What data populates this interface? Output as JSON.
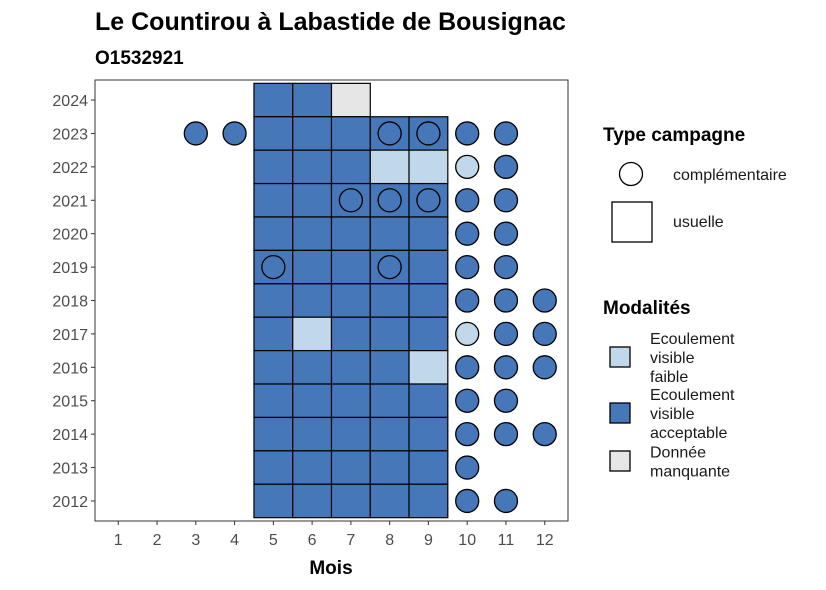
{
  "chart_data": {
    "type": "heatmap",
    "title": "Le Countirou à Labastide de Bousignac",
    "subtitle": "O1532921",
    "xlabel": "Mois",
    "ylabel": "",
    "x_categories": [
      "1",
      "2",
      "3",
      "4",
      "5",
      "6",
      "7",
      "8",
      "9",
      "10",
      "11",
      "12"
    ],
    "y_categories": [
      "2012",
      "2013",
      "2014",
      "2015",
      "2016",
      "2017",
      "2018",
      "2019",
      "2020",
      "2021",
      "2022",
      "2023",
      "2024"
    ],
    "grid": false,
    "legend_position": "right",
    "colors": {
      "Ecoulement visible faible": "#c0d8ea",
      "Ecoulement visible acceptable": "#4677b8",
      "Donnée manquante": "#e6e6e6"
    },
    "legends": {
      "type_campagne": {
        "title": "Type campagne",
        "items": [
          {
            "label": "complémentaire",
            "shape": "circle"
          },
          {
            "label": "usuelle",
            "shape": "square"
          }
        ]
      },
      "modalites": {
        "title": "Modalités",
        "items": [
          {
            "label": [
              "Ecoulement",
              "visible",
              "faible"
            ],
            "key": "Ecoulement visible faible"
          },
          {
            "label": [
              "Ecoulement",
              "visible",
              "acceptable"
            ],
            "key": "Ecoulement visible acceptable"
          },
          {
            "label": [
              "Donnée",
              "manquante"
            ],
            "key": "Donnée manquante"
          }
        ]
      }
    },
    "points": [
      {
        "month": 5,
        "year": 2024,
        "campagne": "usuelle",
        "modalite": "Ecoulement visible acceptable"
      },
      {
        "month": 6,
        "year": 2024,
        "campagne": "usuelle",
        "modalite": "Ecoulement visible acceptable"
      },
      {
        "month": 7,
        "year": 2024,
        "campagne": "usuelle",
        "modalite": "Donnée manquante"
      },
      {
        "month": 3,
        "year": 2023,
        "campagne": "complémentaire",
        "modalite": "Ecoulement visible acceptable"
      },
      {
        "month": 4,
        "year": 2023,
        "campagne": "complémentaire",
        "modalite": "Ecoulement visible acceptable"
      },
      {
        "month": 5,
        "year": 2023,
        "campagne": "usuelle",
        "modalite": "Ecoulement visible acceptable"
      },
      {
        "month": 6,
        "year": 2023,
        "campagne": "usuelle",
        "modalite": "Ecoulement visible acceptable"
      },
      {
        "month": 7,
        "year": 2023,
        "campagne": "usuelle",
        "modalite": "Ecoulement visible acceptable"
      },
      {
        "month": 8,
        "year": 2023,
        "campagne": "usuelle",
        "modalite": "Ecoulement visible acceptable"
      },
      {
        "month": 8,
        "year": 2023,
        "campagne": "complémentaire",
        "modalite": "Ecoulement visible acceptable"
      },
      {
        "month": 9,
        "year": 2023,
        "campagne": "usuelle",
        "modalite": "Ecoulement visible acceptable"
      },
      {
        "month": 9,
        "year": 2023,
        "campagne": "complémentaire",
        "modalite": "Ecoulement visible acceptable"
      },
      {
        "month": 10,
        "year": 2023,
        "campagne": "complémentaire",
        "modalite": "Ecoulement visible acceptable"
      },
      {
        "month": 11,
        "year": 2023,
        "campagne": "complémentaire",
        "modalite": "Ecoulement visible acceptable"
      },
      {
        "month": 5,
        "year": 2022,
        "campagne": "usuelle",
        "modalite": "Ecoulement visible acceptable"
      },
      {
        "month": 6,
        "year": 2022,
        "campagne": "usuelle",
        "modalite": "Ecoulement visible acceptable"
      },
      {
        "month": 7,
        "year": 2022,
        "campagne": "usuelle",
        "modalite": "Ecoulement visible acceptable"
      },
      {
        "month": 8,
        "year": 2022,
        "campagne": "usuelle",
        "modalite": "Ecoulement visible faible"
      },
      {
        "month": 9,
        "year": 2022,
        "campagne": "usuelle",
        "modalite": "Ecoulement visible faible"
      },
      {
        "month": 10,
        "year": 2022,
        "campagne": "complémentaire",
        "modalite": "Ecoulement visible faible"
      },
      {
        "month": 11,
        "year": 2022,
        "campagne": "complémentaire",
        "modalite": "Ecoulement visible acceptable"
      },
      {
        "month": 5,
        "year": 2021,
        "campagne": "usuelle",
        "modalite": "Ecoulement visible acceptable"
      },
      {
        "month": 6,
        "year": 2021,
        "campagne": "usuelle",
        "modalite": "Ecoulement visible acceptable"
      },
      {
        "month": 7,
        "year": 2021,
        "campagne": "usuelle",
        "modalite": "Ecoulement visible acceptable"
      },
      {
        "month": 7,
        "year": 2021,
        "campagne": "complémentaire",
        "modalite": "Ecoulement visible acceptable"
      },
      {
        "month": 8,
        "year": 2021,
        "campagne": "usuelle",
        "modalite": "Ecoulement visible acceptable"
      },
      {
        "month": 8,
        "year": 2021,
        "campagne": "complémentaire",
        "modalite": "Ecoulement visible acceptable"
      },
      {
        "month": 9,
        "year": 2021,
        "campagne": "usuelle",
        "modalite": "Ecoulement visible acceptable"
      },
      {
        "month": 9,
        "year": 2021,
        "campagne": "complémentaire",
        "modalite": "Ecoulement visible acceptable"
      },
      {
        "month": 10,
        "year": 2021,
        "campagne": "complémentaire",
        "modalite": "Ecoulement visible acceptable"
      },
      {
        "month": 11,
        "year": 2021,
        "campagne": "complémentaire",
        "modalite": "Ecoulement visible acceptable"
      },
      {
        "month": 5,
        "year": 2020,
        "campagne": "usuelle",
        "modalite": "Ecoulement visible acceptable"
      },
      {
        "month": 6,
        "year": 2020,
        "campagne": "usuelle",
        "modalite": "Ecoulement visible acceptable"
      },
      {
        "month": 7,
        "year": 2020,
        "campagne": "usuelle",
        "modalite": "Ecoulement visible acceptable"
      },
      {
        "month": 8,
        "year": 2020,
        "campagne": "usuelle",
        "modalite": "Ecoulement visible acceptable"
      },
      {
        "month": 9,
        "year": 2020,
        "campagne": "usuelle",
        "modalite": "Ecoulement visible acceptable"
      },
      {
        "month": 10,
        "year": 2020,
        "campagne": "complémentaire",
        "modalite": "Ecoulement visible acceptable"
      },
      {
        "month": 11,
        "year": 2020,
        "campagne": "complémentaire",
        "modalite": "Ecoulement visible acceptable"
      },
      {
        "month": 5,
        "year": 2019,
        "campagne": "usuelle",
        "modalite": "Ecoulement visible acceptable"
      },
      {
        "month": 5,
        "year": 2019,
        "campagne": "complémentaire",
        "modalite": "Ecoulement visible acceptable"
      },
      {
        "month": 6,
        "year": 2019,
        "campagne": "usuelle",
        "modalite": "Ecoulement visible acceptable"
      },
      {
        "month": 7,
        "year": 2019,
        "campagne": "usuelle",
        "modalite": "Ecoulement visible acceptable"
      },
      {
        "month": 8,
        "year": 2019,
        "campagne": "usuelle",
        "modalite": "Ecoulement visible acceptable"
      },
      {
        "month": 8,
        "year": 2019,
        "campagne": "complémentaire",
        "modalite": "Ecoulement visible acceptable"
      },
      {
        "month": 9,
        "year": 2019,
        "campagne": "usuelle",
        "modalite": "Ecoulement visible acceptable"
      },
      {
        "month": 10,
        "year": 2019,
        "campagne": "complémentaire",
        "modalite": "Ecoulement visible acceptable"
      },
      {
        "month": 11,
        "year": 2019,
        "campagne": "complémentaire",
        "modalite": "Ecoulement visible acceptable"
      },
      {
        "month": 5,
        "year": 2018,
        "campagne": "usuelle",
        "modalite": "Ecoulement visible acceptable"
      },
      {
        "month": 6,
        "year": 2018,
        "campagne": "usuelle",
        "modalite": "Ecoulement visible acceptable"
      },
      {
        "month": 7,
        "year": 2018,
        "campagne": "usuelle",
        "modalite": "Ecoulement visible acceptable"
      },
      {
        "month": 8,
        "year": 2018,
        "campagne": "usuelle",
        "modalite": "Ecoulement visible acceptable"
      },
      {
        "month": 9,
        "year": 2018,
        "campagne": "usuelle",
        "modalite": "Ecoulement visible acceptable"
      },
      {
        "month": 10,
        "year": 2018,
        "campagne": "complémentaire",
        "modalite": "Ecoulement visible acceptable"
      },
      {
        "month": 11,
        "year": 2018,
        "campagne": "complémentaire",
        "modalite": "Ecoulement visible acceptable"
      },
      {
        "month": 12,
        "year": 2018,
        "campagne": "complémentaire",
        "modalite": "Ecoulement visible acceptable"
      },
      {
        "month": 5,
        "year": 2017,
        "campagne": "usuelle",
        "modalite": "Ecoulement visible acceptable"
      },
      {
        "month": 6,
        "year": 2017,
        "campagne": "usuelle",
        "modalite": "Ecoulement visible faible"
      },
      {
        "month": 7,
        "year": 2017,
        "campagne": "usuelle",
        "modalite": "Ecoulement visible acceptable"
      },
      {
        "month": 8,
        "year": 2017,
        "campagne": "usuelle",
        "modalite": "Ecoulement visible acceptable"
      },
      {
        "month": 9,
        "year": 2017,
        "campagne": "usuelle",
        "modalite": "Ecoulement visible acceptable"
      },
      {
        "month": 10,
        "year": 2017,
        "campagne": "complémentaire",
        "modalite": "Ecoulement visible faible"
      },
      {
        "month": 11,
        "year": 2017,
        "campagne": "complémentaire",
        "modalite": "Ecoulement visible acceptable"
      },
      {
        "month": 12,
        "year": 2017,
        "campagne": "complémentaire",
        "modalite": "Ecoulement visible acceptable"
      },
      {
        "month": 5,
        "year": 2016,
        "campagne": "usuelle",
        "modalite": "Ecoulement visible acceptable"
      },
      {
        "month": 6,
        "year": 2016,
        "campagne": "usuelle",
        "modalite": "Ecoulement visible acceptable"
      },
      {
        "month": 7,
        "year": 2016,
        "campagne": "usuelle",
        "modalite": "Ecoulement visible acceptable"
      },
      {
        "month": 8,
        "year": 2016,
        "campagne": "usuelle",
        "modalite": "Ecoulement visible acceptable"
      },
      {
        "month": 9,
        "year": 2016,
        "campagne": "usuelle",
        "modalite": "Ecoulement visible faible"
      },
      {
        "month": 10,
        "year": 2016,
        "campagne": "complémentaire",
        "modalite": "Ecoulement visible acceptable"
      },
      {
        "month": 11,
        "year": 2016,
        "campagne": "complémentaire",
        "modalite": "Ecoulement visible acceptable"
      },
      {
        "month": 12,
        "year": 2016,
        "campagne": "complémentaire",
        "modalite": "Ecoulement visible acceptable"
      },
      {
        "month": 5,
        "year": 2015,
        "campagne": "usuelle",
        "modalite": "Ecoulement visible acceptable"
      },
      {
        "month": 6,
        "year": 2015,
        "campagne": "usuelle",
        "modalite": "Ecoulement visible acceptable"
      },
      {
        "month": 7,
        "year": 2015,
        "campagne": "usuelle",
        "modalite": "Ecoulement visible acceptable"
      },
      {
        "month": 8,
        "year": 2015,
        "campagne": "usuelle",
        "modalite": "Ecoulement visible acceptable"
      },
      {
        "month": 9,
        "year": 2015,
        "campagne": "usuelle",
        "modalite": "Ecoulement visible acceptable"
      },
      {
        "month": 10,
        "year": 2015,
        "campagne": "complémentaire",
        "modalite": "Ecoulement visible acceptable"
      },
      {
        "month": 11,
        "year": 2015,
        "campagne": "complémentaire",
        "modalite": "Ecoulement visible acceptable"
      },
      {
        "month": 5,
        "year": 2014,
        "campagne": "usuelle",
        "modalite": "Ecoulement visible acceptable"
      },
      {
        "month": 6,
        "year": 2014,
        "campagne": "usuelle",
        "modalite": "Ecoulement visible acceptable"
      },
      {
        "month": 7,
        "year": 2014,
        "campagne": "usuelle",
        "modalite": "Ecoulement visible acceptable"
      },
      {
        "month": 8,
        "year": 2014,
        "campagne": "usuelle",
        "modalite": "Ecoulement visible acceptable"
      },
      {
        "month": 9,
        "year": 2014,
        "campagne": "usuelle",
        "modalite": "Ecoulement visible acceptable"
      },
      {
        "month": 10,
        "year": 2014,
        "campagne": "complémentaire",
        "modalite": "Ecoulement visible acceptable"
      },
      {
        "month": 11,
        "year": 2014,
        "campagne": "complémentaire",
        "modalite": "Ecoulement visible acceptable"
      },
      {
        "month": 12,
        "year": 2014,
        "campagne": "complémentaire",
        "modalite": "Ecoulement visible acceptable"
      },
      {
        "month": 5,
        "year": 2013,
        "campagne": "usuelle",
        "modalite": "Ecoulement visible acceptable"
      },
      {
        "month": 6,
        "year": 2013,
        "campagne": "usuelle",
        "modalite": "Ecoulement visible acceptable"
      },
      {
        "month": 7,
        "year": 2013,
        "campagne": "usuelle",
        "modalite": "Ecoulement visible acceptable"
      },
      {
        "month": 8,
        "year": 2013,
        "campagne": "usuelle",
        "modalite": "Ecoulement visible acceptable"
      },
      {
        "month": 9,
        "year": 2013,
        "campagne": "usuelle",
        "modalite": "Ecoulement visible acceptable"
      },
      {
        "month": 10,
        "year": 2013,
        "campagne": "complémentaire",
        "modalite": "Ecoulement visible acceptable"
      },
      {
        "month": 5,
        "year": 2012,
        "campagne": "usuelle",
        "modalite": "Ecoulement visible acceptable"
      },
      {
        "month": 6,
        "year": 2012,
        "campagne": "usuelle",
        "modalite": "Ecoulement visible acceptable"
      },
      {
        "month": 7,
        "year": 2012,
        "campagne": "usuelle",
        "modalite": "Ecoulement visible acceptable"
      },
      {
        "month": 8,
        "year": 2012,
        "campagne": "usuelle",
        "modalite": "Ecoulement visible acceptable"
      },
      {
        "month": 9,
        "year": 2012,
        "campagne": "usuelle",
        "modalite": "Ecoulement visible acceptable"
      },
      {
        "month": 10,
        "year": 2012,
        "campagne": "complémentaire",
        "modalite": "Ecoulement visible acceptable"
      },
      {
        "month": 11,
        "year": 2012,
        "campagne": "complémentaire",
        "modalite": "Ecoulement visible acceptable"
      }
    ]
  }
}
